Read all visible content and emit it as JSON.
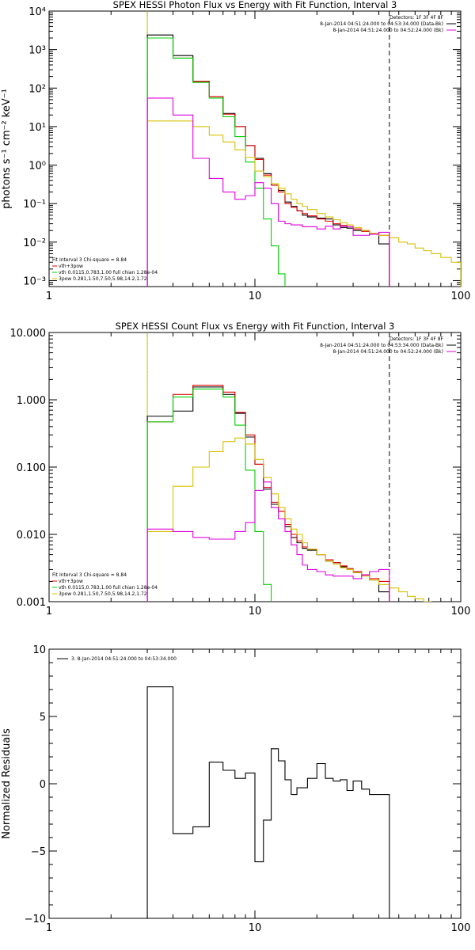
{
  "figure": {
    "x_ticks": [
      "1",
      "10",
      "100"
    ]
  },
  "chart_data": [
    {
      "type": "line",
      "title": "SPEX HESSI Photon Flux vs Energy with Fit Function, Interval 3",
      "xlabel": "",
      "ylabel": "photons s⁻¹ cm⁻² keV⁻¹",
      "xscale": "log",
      "yscale": "log",
      "xlim": [
        1,
        100
      ],
      "ylim": [
        0.0007,
        10000
      ],
      "y_ticks": [
        "10⁻³",
        "10⁻²",
        "10⁻¹",
        "10⁰",
        "10¹",
        "10²",
        "10³",
        "10⁴"
      ],
      "y_tick_values": [
        0.001,
        0.01,
        0.1,
        1,
        10,
        100,
        1000,
        10000
      ],
      "vlines": [
        {
          "x": 3.0,
          "style": "dotted",
          "color": "#000000"
        },
        {
          "x": 3.0,
          "style": "solid",
          "color": "#cccc00"
        },
        {
          "x": 45.0,
          "style": "dashed",
          "color": "#000000"
        }
      ],
      "legend_top": {
        "placement": "top-right",
        "lines": [
          {
            "text": "Detectors: 1F 3F 4F 8F",
            "color": ""
          },
          {
            "text": "8-Jan-2014 04:51:24.000 to 04:53:34.000 (Data-Bk)",
            "color": "#000000"
          },
          {
            "text": "8-Jan-2014 04:51:24.000 to 04:52:24.000 (Bk)",
            "color": "#e000e0"
          }
        ]
      },
      "legend_fit": {
        "placement": "bottom-left",
        "lines": [
          {
            "text": "Fit Interval 3   Chi-square = 8.84",
            "color": ""
          },
          {
            "text": "vth+3pow",
            "color": "#e00000"
          },
          {
            "text": "vth 0.0115,0.783,1.00  full chian 1.28e-04",
            "color": "#00d000"
          },
          {
            "text": "3pow 0.281,1.50,7.50,5.98,14.2,1.72",
            "color": "#d8c000"
          }
        ]
      },
      "series": [
        {
          "color": "#000000",
          "edges": [
            3.0,
            4.0,
            5.0,
            6.0,
            7.0,
            8.0,
            9.0,
            10.0,
            11.0,
            12.0,
            13.0,
            14.0,
            15.0,
            16.0,
            17.0,
            18.0,
            20.0,
            22.0,
            24.0,
            26.0,
            28.0,
            30.0,
            33.0,
            36.0,
            40.0,
            45.0
          ],
          "values": [
            2400,
            700,
            150,
            60,
            22,
            10,
            3.2,
            1.5,
            0.6,
            0.3,
            0.22,
            0.11,
            0.085,
            0.065,
            0.05,
            0.045,
            0.042,
            0.04,
            0.028,
            0.024,
            0.023,
            0.02,
            0.02,
            0.016,
            0.009
          ]
        },
        {
          "color": "#e00000",
          "edges": [
            3.0,
            4.0,
            5.0,
            6.0,
            7.0,
            8.0,
            9.0,
            10.0,
            11.0,
            12.0,
            13.0,
            14.0,
            15.0,
            16.0,
            17.0,
            18.0,
            20.0,
            22.0,
            24.0,
            26.0,
            28.0,
            30.0,
            33.0,
            36.0,
            40.0,
            45.0
          ],
          "values": [
            2000,
            600,
            150,
            60,
            21,
            10,
            3.2,
            1.4,
            0.55,
            0.3,
            0.2,
            0.1,
            0.08,
            0.065,
            0.055,
            0.048,
            0.04,
            0.035,
            0.03,
            0.027,
            0.025,
            0.022,
            0.019,
            0.017,
            0.015
          ]
        },
        {
          "color": "#00d000",
          "edges": [
            3.0,
            4.0,
            5.0,
            6.0,
            7.0,
            8.0,
            9.0,
            10.0,
            11.0,
            12.0,
            13.0,
            14.0
          ],
          "values": [
            2000,
            600,
            140,
            55,
            18,
            5.5,
            1.2,
            0.25,
            0.04,
            0.008,
            0.0015
          ]
        },
        {
          "color": "#d8c000",
          "edges": [
            3.0,
            4.0,
            5.0,
            6.0,
            7.0,
            8.0,
            9.0,
            10.0,
            11.0,
            12.0,
            13.0,
            14.0,
            15.0,
            16.0,
            17.0,
            18.0,
            20.0,
            22.0,
            24.0,
            26.0,
            28.0,
            30.0,
            33.0,
            36.0,
            40.0,
            45.0,
            50.0,
            55.0,
            60.0,
            66.0,
            72.0,
            80.0,
            90.0,
            100.0
          ],
          "values": [
            14,
            14,
            10,
            6,
            4,
            2.5,
            1.6,
            0.7,
            0.5,
            0.33,
            0.25,
            0.18,
            0.13,
            0.1,
            0.085,
            0.07,
            0.055,
            0.045,
            0.038,
            0.032,
            0.028,
            0.024,
            0.02,
            0.017,
            0.015,
            0.013,
            0.01,
            0.009,
            0.007,
            0.006,
            0.005,
            0.004,
            0.003
          ]
        },
        {
          "color": "#e000e0",
          "edges": [
            3.0,
            4.0,
            5.0,
            6.0,
            7.0,
            8.0,
            9.0,
            10.0,
            11.0,
            12.0,
            13.0,
            14.0,
            15.0,
            16.0,
            17.0,
            18.0,
            20.0,
            22.0,
            24.0,
            26.0,
            28.0,
            30.0,
            33.0,
            36.0,
            40.0,
            45.0
          ],
          "values": [
            55,
            20,
            1.5,
            0.45,
            0.2,
            0.13,
            0.16,
            0.35,
            0.25,
            0.1,
            0.035,
            0.03,
            0.028,
            0.028,
            0.025,
            0.025,
            0.022,
            0.026,
            0.022,
            0.026,
            0.025,
            0.015,
            0.015,
            0.016,
            0.018
          ]
        }
      ]
    },
    {
      "type": "line",
      "title": "SPEX HESSI Count Flux vs Energy with Fit Function, Interval 3",
      "xlabel": "",
      "ylabel": "",
      "xscale": "log",
      "yscale": "log",
      "xlim": [
        1,
        100
      ],
      "ylim": [
        0.001,
        10
      ],
      "y_ticks": [
        "0.001",
        "0.010",
        "0.100",
        "1.000",
        "10.000"
      ],
      "y_tick_values": [
        0.001,
        0.01,
        0.1,
        1,
        10
      ],
      "vlines": [
        {
          "x": 3.0,
          "style": "dotted",
          "color": "#000000"
        },
        {
          "x": 3.0,
          "style": "solid",
          "color": "#cccc00"
        },
        {
          "x": 45.0,
          "style": "dashed",
          "color": "#000000"
        }
      ],
      "legend_top": {
        "placement": "top-right",
        "lines": [
          {
            "text": "Detectors: 1F 3F 4F 8F",
            "color": ""
          },
          {
            "text": "8-Jan-2014 04:51:24.000 to 04:53:34.000 (Data-Bk)",
            "color": "#000000"
          },
          {
            "text": "8-Jan-2014 04:51:24.000 to 04:52:24.000 (Bk)",
            "color": "#e000e0"
          }
        ]
      },
      "legend_fit": {
        "placement": "bottom-left",
        "lines": [
          {
            "text": "Fit Interval 3   Chi-square = 8.84",
            "color": ""
          },
          {
            "text": "vth+3pow",
            "color": "#e00000"
          },
          {
            "text": "vth 0.0115,0.783,1.00  full chian 1.28e-04",
            "color": "#00d000"
          },
          {
            "text": "3pow 0.281,1.50,7.50,5.98,14.2,1.72",
            "color": "#d8c000"
          }
        ]
      },
      "series": [
        {
          "color": "#000000",
          "edges": [
            3.0,
            4.0,
            5.0,
            6.0,
            7.0,
            8.0,
            9.0,
            10.0,
            11.0,
            12.0,
            13.0,
            14.0,
            15.0,
            16.0,
            17.0,
            18.0,
            20.0,
            22.0,
            24.0,
            26.0,
            28.0,
            30.0,
            33.0,
            36.0,
            40.0,
            45.0
          ],
          "values": [
            0.57,
            0.68,
            1.55,
            1.55,
            1.2,
            0.63,
            0.28,
            0.11,
            0.047,
            0.028,
            0.022,
            0.013,
            0.009,
            0.0075,
            0.0062,
            0.0058,
            0.005,
            0.004,
            0.0038,
            0.0033,
            0.003,
            0.0027,
            0.0025,
            0.0021,
            0.0014
          ]
        },
        {
          "color": "#e00000",
          "edges": [
            3.0,
            4.0,
            5.0,
            6.0,
            7.0,
            8.0,
            9.0,
            10.0,
            11.0,
            12.0,
            13.0,
            14.0,
            15.0,
            16.0,
            17.0,
            18.0,
            20.0,
            22.0,
            24.0,
            26.0,
            28.0,
            30.0,
            33.0,
            36.0,
            40.0,
            45.0
          ],
          "values": [
            0.47,
            1.2,
            1.65,
            1.65,
            1.3,
            0.65,
            0.3,
            0.11,
            0.05,
            0.03,
            0.022,
            0.014,
            0.01,
            0.008,
            0.0065,
            0.006,
            0.005,
            0.0042,
            0.0038,
            0.0034,
            0.0031,
            0.0028,
            0.0025,
            0.0022,
            0.002
          ]
        },
        {
          "color": "#00d000",
          "edges": [
            3.0,
            4.0,
            5.0,
            6.0,
            7.0,
            8.0,
            9.0,
            10.0,
            11.0,
            12.0
          ],
          "values": [
            0.47,
            1.1,
            1.45,
            1.45,
            1.1,
            0.42,
            0.09,
            0.011,
            0.0018
          ]
        },
        {
          "color": "#d8c000",
          "edges": [
            3.0,
            4.0,
            5.0,
            6.0,
            7.0,
            8.0,
            9.0,
            10.0,
            11.0,
            12.0,
            13.0,
            14.0,
            15.0,
            16.0,
            17.0,
            18.0,
            20.0,
            22.0,
            24.0,
            26.0,
            28.0,
            30.0,
            33.0,
            36.0,
            40.0,
            45.0,
            50.0,
            55.0,
            60.0,
            66.0,
            72.0,
            80.0,
            90.0
          ],
          "values": [
            0.011,
            0.052,
            0.1,
            0.17,
            0.24,
            0.27,
            0.22,
            0.13,
            0.07,
            0.04,
            0.025,
            0.017,
            0.012,
            0.01,
            0.0075,
            0.006,
            0.005,
            0.004,
            0.0036,
            0.0032,
            0.003,
            0.0027,
            0.0024,
            0.0021,
            0.0018,
            0.0016,
            0.0014,
            0.0012,
            0.0011,
            0.001,
            0.0009,
            0.0008
          ]
        },
        {
          "color": "#e000e0",
          "edges": [
            3.0,
            4.0,
            5.0,
            6.0,
            7.0,
            8.0,
            9.0,
            10.0,
            11.0,
            12.0,
            13.0,
            14.0,
            15.0,
            16.0,
            17.0,
            18.0,
            20.0,
            22.0,
            24.0,
            26.0,
            28.0,
            30.0,
            33.0,
            36.0,
            40.0,
            45.0
          ],
          "values": [
            0.012,
            0.011,
            0.009,
            0.0085,
            0.0085,
            0.011,
            0.015,
            0.045,
            0.06,
            0.025,
            0.017,
            0.011,
            0.007,
            0.005,
            0.0035,
            0.003,
            0.0028,
            0.0025,
            0.0024,
            0.0024,
            0.0024,
            0.0022,
            0.0025,
            0.0028,
            0.003
          ]
        }
      ]
    },
    {
      "type": "line",
      "title": "",
      "xlabel": "",
      "ylabel": "Normalized Residuals",
      "xscale": "log",
      "yscale": "linear",
      "xlim": [
        1,
        100
      ],
      "ylim": [
        -10,
        10
      ],
      "y_ticks": [
        "−10",
        "−5",
        "0",
        "5",
        "10"
      ],
      "y_tick_values": [
        -10,
        -5,
        0,
        5,
        10
      ],
      "vlines": [],
      "legend_top": {
        "placement": "top-left",
        "lines": [
          {
            "text": "3. 8-Jan-2014 04:51:24.000 to 04:53:34.000",
            "color": "#000000"
          }
        ]
      },
      "legend_fit": {
        "placement": "",
        "lines": []
      },
      "series": [
        {
          "color": "#000000",
          "edges": [
            3.0,
            4.0,
            5.0,
            6.0,
            7.0,
            8.0,
            9.0,
            10.0,
            11.0,
            12.0,
            13.0,
            14.0,
            15.0,
            16.0,
            17.0,
            18.0,
            20.0,
            22.0,
            24.0,
            26.0,
            28.0,
            30.0,
            33.0,
            36.0,
            40.0,
            45.0
          ],
          "values": [
            7.2,
            -3.7,
            -3.2,
            1.6,
            1.0,
            0.4,
            0.8,
            -5.8,
            -2.7,
            2.6,
            1.7,
            0.3,
            -0.8,
            -0.3,
            -0.3,
            0.4,
            1.5,
            0.4,
            0.2,
            0.3,
            -0.5,
            0.2,
            -0.4,
            -0.8,
            -0.8
          ]
        }
      ]
    }
  ]
}
